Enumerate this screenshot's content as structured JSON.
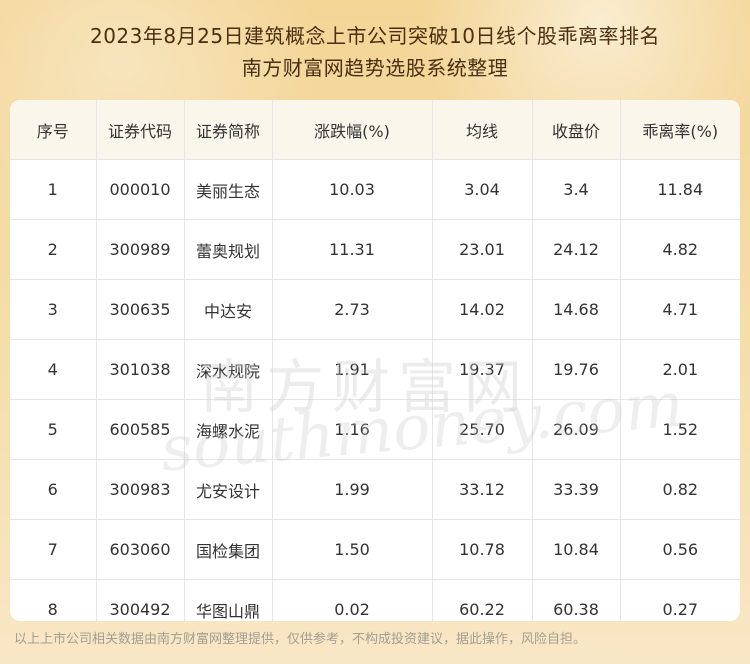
{
  "title": {
    "line1": "2023年8月25日建筑概念上市公司突破10日线个股乖离率排名",
    "line2": "南方财富网趋势选股系统整理"
  },
  "table": {
    "headers": [
      "序号",
      "证券代码",
      "证券简称",
      "涨跌幅(%)",
      "均线",
      "收盘价",
      "乖离率(%)"
    ],
    "rows": [
      [
        "1",
        "000010",
        "美丽生态",
        "10.03",
        "3.04",
        "3.4",
        "11.84"
      ],
      [
        "2",
        "300989",
        "蕾奥规划",
        "11.31",
        "23.01",
        "24.12",
        "4.82"
      ],
      [
        "3",
        "300635",
        "中达安",
        "2.73",
        "14.02",
        "14.68",
        "4.71"
      ],
      [
        "4",
        "301038",
        "深水规院",
        "1.91",
        "19.37",
        "19.76",
        "2.01"
      ],
      [
        "5",
        "600585",
        "海螺水泥",
        "1.16",
        "25.70",
        "26.09",
        "1.52"
      ],
      [
        "6",
        "300983",
        "尤安设计",
        "1.99",
        "33.12",
        "33.39",
        "0.82"
      ],
      [
        "7",
        "603060",
        "国检集团",
        "1.50",
        "10.78",
        "10.84",
        "0.56"
      ],
      [
        "8",
        "300492",
        "华图山鼎",
        "0.02",
        "60.22",
        "60.38",
        "0.27"
      ]
    ]
  },
  "watermark": {
    "cn": "南方财富网",
    "en": "southmoney.com"
  },
  "footer": "以上上市公司相关数据由南方财富网整理提供，仅供参考，不构成投资建议，据此操作，风险自担。"
}
